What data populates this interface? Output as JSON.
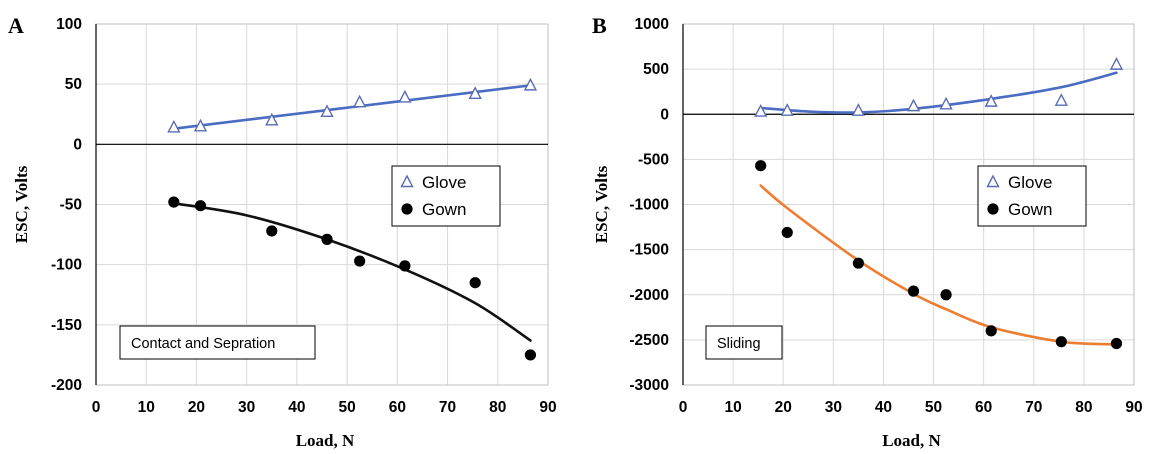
{
  "chart_data": [
    {
      "panel_label": "A",
      "type": "scatter",
      "xlabel": "Load, N",
      "ylabel": "ESC, Volts",
      "xlim": [
        0,
        90
      ],
      "ylim": [
        -200,
        100
      ],
      "x_ticks": [
        0,
        10,
        20,
        30,
        40,
        50,
        60,
        70,
        80,
        90
      ],
      "y_ticks": [
        -200,
        -150,
        -100,
        -50,
        0,
        50,
        100
      ],
      "grid": true,
      "legend_position": "right",
      "annotation": "Contact and Sepration",
      "series": [
        {
          "name": "Glove",
          "marker": "triangle-open",
          "color": "#5a6db3",
          "trend_color": "#4a6cc2",
          "x": [
            15.5,
            20.8,
            35,
            46,
            52.5,
            61.5,
            75.5,
            86.5
          ],
          "y": [
            14,
            15,
            20,
            27,
            35,
            39,
            42,
            49
          ],
          "trend": [
            [
              15.5,
              13
            ],
            [
              86.5,
              49
            ]
          ]
        },
        {
          "name": "Gown",
          "marker": "circle-filled",
          "color": "#000000",
          "trend_color": "#111111",
          "x": [
            15.5,
            20.8,
            35,
            46,
            52.5,
            61.5,
            75.5,
            86.5
          ],
          "y": [
            -48,
            -51,
            -72,
            -79,
            -97,
            -101,
            -115,
            -175
          ],
          "trend": [
            [
              15.5,
              -49
            ],
            [
              30,
              -59
            ],
            [
              46,
              -79
            ],
            [
              61.5,
              -104
            ],
            [
              75.5,
              -132
            ],
            [
              86.5,
              -163
            ]
          ]
        }
      ]
    },
    {
      "panel_label": "B",
      "type": "scatter",
      "xlabel": "Load, N",
      "ylabel": "ESC, Volts",
      "xlim": [
        0,
        90
      ],
      "ylim": [
        -3000,
        1000
      ],
      "x_ticks": [
        0,
        10,
        20,
        30,
        40,
        50,
        60,
        70,
        80,
        90
      ],
      "y_ticks": [
        -3000,
        -2500,
        -2000,
        -1500,
        -1000,
        -500,
        0,
        500,
        1000
      ],
      "grid": true,
      "legend_position": "right",
      "annotation": "Sliding",
      "series": [
        {
          "name": "Glove",
          "marker": "triangle-open",
          "color": "#5a6db3",
          "trend_color": "#4a6cc2",
          "x": [
            15.5,
            20.8,
            35,
            46,
            52.5,
            61.5,
            75.5,
            86.5
          ],
          "y": [
            30,
            40,
            40,
            90,
            110,
            140,
            150,
            550
          ],
          "trend": [
            [
              15.5,
              70
            ],
            [
              25,
              30
            ],
            [
              35,
              20
            ],
            [
              46,
              60
            ],
            [
              61.5,
              170
            ],
            [
              75.5,
              300
            ],
            [
              86.5,
              460
            ]
          ]
        },
        {
          "name": "Gown",
          "marker": "circle-filled",
          "color": "#000000",
          "trend_color": "#ed7d31",
          "x": [
            15.5,
            20.8,
            35,
            46,
            52.5,
            61.5,
            75.5,
            86.5
          ],
          "y": [
            -570,
            -1310,
            -1650,
            -1960,
            -2000,
            -2400,
            -2520,
            -2540
          ],
          "trend": [
            [
              15.5,
              -790
            ],
            [
              20.8,
              -1040
            ],
            [
              35,
              -1620
            ],
            [
              46,
              -1990
            ],
            [
              52.5,
              -2160
            ],
            [
              61.5,
              -2360
            ],
            [
              75.5,
              -2520
            ],
            [
              86.5,
              -2550
            ]
          ]
        }
      ]
    }
  ]
}
